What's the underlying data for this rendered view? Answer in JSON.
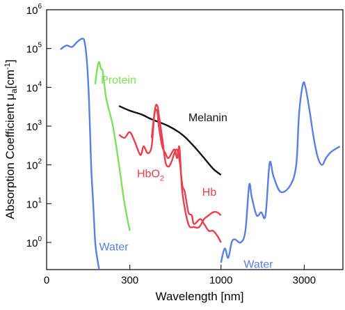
{
  "chart_data": {
    "type": "line",
    "title": "",
    "xlabel": "Wavelength [nm]",
    "ylabel_parts": {
      "before_mu": "Absorption Coefficient ",
      "mu": "μ",
      "mu_subscript": "a",
      "unit_open": "[cm",
      "unit_exp": "-1",
      "unit_close": "]"
    },
    "x_scale": "log",
    "y_scale": "log",
    "xlim": [
      100,
      5000
    ],
    "ylim_exp": [
      -0.7,
      6
    ],
    "x_ticks": [
      {
        "value": 300,
        "label": "300"
      },
      {
        "value": 1000,
        "label": "1000"
      },
      {
        "value": 3000,
        "label": "3000"
      }
    ],
    "x_zero_label": "0",
    "y_ticks": [
      {
        "exp": 0,
        "base": "10",
        "sup": "0"
      },
      {
        "exp": 1,
        "base": "10",
        "sup": "1"
      },
      {
        "exp": 2,
        "base": "10",
        "sup": "2"
      },
      {
        "exp": 3,
        "base": "10",
        "sup": "3"
      },
      {
        "exp": 4,
        "base": "10",
        "sup": "4"
      },
      {
        "exp": 5,
        "base": "10",
        "sup": "5"
      },
      {
        "exp": 6,
        "base": "10",
        "sup": "6"
      }
    ],
    "series": [
      {
        "key": "water-uv",
        "color": "#5b7fe0",
        "points": [
          [
            120,
            95000.0
          ],
          [
            130,
            120000.0
          ],
          [
            140,
            110000.0
          ],
          [
            150,
            150000.0
          ],
          [
            160,
            180000.0
          ],
          [
            165,
            150000.0
          ],
          [
            170,
            50000.0
          ],
          [
            175,
            5000.0
          ],
          [
            180,
            100.0
          ],
          [
            185,
            10
          ],
          [
            190,
            1
          ],
          [
            195,
            0.4
          ],
          [
            200,
            0.2
          ]
        ]
      },
      {
        "key": "protein",
        "color": "#7fe05a",
        "points": [
          [
            190,
            12000.0
          ],
          [
            195,
            30000.0
          ],
          [
            200,
            45000.0
          ],
          [
            205,
            30000.0
          ],
          [
            210,
            25000.0
          ],
          [
            220,
            5000.0
          ],
          [
            240,
            1000.0
          ],
          [
            260,
            100.0
          ],
          [
            280,
            10
          ],
          [
            300,
            2
          ]
        ]
      },
      {
        "key": "melanin",
        "color": "#111111",
        "points": [
          [
            260,
            3300.0
          ],
          [
            300,
            2500.0
          ],
          [
            350,
            2000.0
          ],
          [
            400,
            1500.0
          ],
          [
            500,
            1000.0
          ],
          [
            600,
            600.0
          ],
          [
            700,
            300.0
          ],
          [
            800,
            150.0
          ],
          [
            900,
            80.0
          ],
          [
            1000,
            55.0
          ]
        ]
      },
      {
        "key": "hbo2",
        "color": "#e8404e",
        "points": [
          [
            260,
            600.0
          ],
          [
            280,
            500.0
          ],
          [
            300,
            700.0
          ],
          [
            320,
            400.0
          ],
          [
            345,
            180.0
          ],
          [
            360,
            300.0
          ],
          [
            380,
            200.0
          ],
          [
            400,
            300.0
          ],
          [
            415,
            2000.0
          ],
          [
            430,
            2500.0
          ],
          [
            440,
            1000.0
          ],
          [
            460,
            300.0
          ],
          [
            480,
            200.0
          ],
          [
            500,
            150.0
          ],
          [
            540,
            250.0
          ],
          [
            560,
            150.0
          ],
          [
            578,
            280.0
          ],
          [
            600,
            20.0
          ],
          [
            650,
            3
          ],
          [
            700,
            2.5
          ],
          [
            750,
            2.5
          ],
          [
            800,
            4
          ],
          [
            850,
            5
          ],
          [
            900,
            6
          ],
          [
            950,
            6
          ],
          [
            1000,
            5
          ]
        ]
      },
      {
        "key": "hb",
        "color": "#e8404e",
        "points": [
          [
            400,
            500.0
          ],
          [
            420,
            3000.0
          ],
          [
            433,
            3200.0
          ],
          [
            440,
            2000.0
          ],
          [
            460,
            500.0
          ],
          [
            480,
            120.0
          ],
          [
            500,
            90.0
          ],
          [
            520,
            120.0
          ],
          [
            555,
            250.0
          ],
          [
            580,
            120.0
          ],
          [
            600,
            30.0
          ],
          [
            620,
            20.0
          ],
          [
            650,
            6
          ],
          [
            680,
            5
          ],
          [
            700,
            3
          ],
          [
            760,
            4
          ],
          [
            800,
            3
          ],
          [
            850,
            2
          ],
          [
            900,
            2
          ],
          [
            950,
            1.5
          ],
          [
            1000,
            1
          ]
        ]
      },
      {
        "key": "water-ir",
        "color": "#5b7fe0",
        "points": [
          [
            1000,
            0.3
          ],
          [
            1050,
            0.7
          ],
          [
            1100,
            0.4
          ],
          [
            1150,
            1
          ],
          [
            1200,
            1.2
          ],
          [
            1300,
            1
          ],
          [
            1380,
            2
          ],
          [
            1450,
            30
          ],
          [
            1500,
            15
          ],
          [
            1600,
            5
          ],
          [
            1700,
            6
          ],
          [
            1800,
            5
          ],
          [
            1900,
            110
          ],
          [
            2000,
            50
          ],
          [
            2200,
            20
          ],
          [
            2500,
            30
          ],
          [
            2700,
            100
          ],
          [
            2800,
            2000.0
          ],
          [
            2950,
            12000.0
          ],
          [
            3050,
            10000.0
          ],
          [
            3200,
            3000.0
          ],
          [
            3400,
            500
          ],
          [
            3600,
            150
          ],
          [
            3800,
            100
          ],
          [
            4000,
            150
          ],
          [
            4300,
            220
          ],
          [
            4800,
            300
          ]
        ]
      }
    ],
    "annotations": [
      {
        "text": "Protein",
        "color": "#7fe05a",
        "x": 205,
        "y": 12500.0,
        "anchor": "start"
      },
      {
        "text": "Melanin",
        "color": "#111111",
        "x": 650,
        "y": 1350.0,
        "anchor": "start"
      },
      {
        "text": "HbO",
        "sub": "2",
        "color": "#e8404e",
        "x": 330,
        "y": 48,
        "anchor": "start"
      },
      {
        "text": "Hb",
        "color": "#e8404e",
        "x": 780,
        "y": 16,
        "anchor": "start"
      },
      {
        "text": "Water",
        "color": "#5b7fe0",
        "x": 200,
        "y": 0.62,
        "anchor": "start"
      },
      {
        "text": "Water",
        "color": "#5b7fe0",
        "x": 1350,
        "y": 0.22,
        "anchor": "start"
      }
    ]
  }
}
